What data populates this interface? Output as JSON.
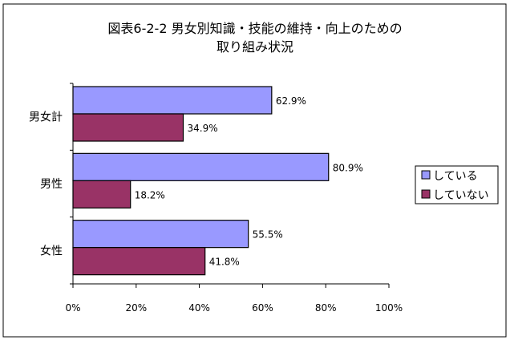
{
  "chart_data": {
    "type": "bar",
    "orientation": "horizontal",
    "title": [
      "図表6-2-2 男女別知識・技能の維持・向上のための",
      "取り組み状況"
    ],
    "categories": [
      "男女計",
      "男性",
      "女性"
    ],
    "series": [
      {
        "name": "している",
        "values": [
          62.9,
          80.9,
          55.5
        ],
        "color": "#9999ff"
      },
      {
        "name": "していない",
        "values": [
          34.9,
          18.2,
          41.8
        ],
        "color": "#993366"
      }
    ],
    "data_labels": [
      [
        "62.9%",
        "80.9%",
        "55.5%"
      ],
      [
        "34.9%",
        "18.2%",
        "41.8%"
      ]
    ],
    "x_ticks": [
      "0%",
      "20%",
      "40%",
      "60%",
      "80%",
      "100%"
    ],
    "xlim": [
      0,
      100
    ],
    "grid": false,
    "legend_position": "right"
  }
}
